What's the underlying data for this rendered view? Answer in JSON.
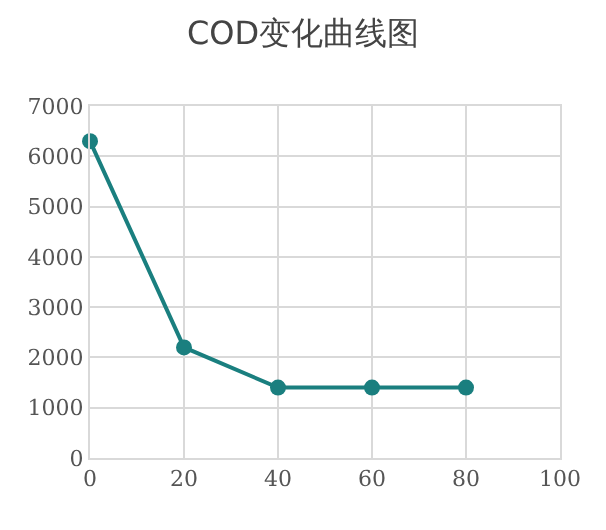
{
  "chart_data": {
    "type": "line",
    "title": "COD变化曲线图",
    "x": [
      0,
      20,
      40,
      60,
      80
    ],
    "series": [
      {
        "color": "#1a7f7f",
        "values": [
          6300,
          2200,
          1400,
          1400,
          1400
        ]
      }
    ],
    "xlim": [
      0,
      100
    ],
    "xticks": [
      0,
      20,
      40,
      60,
      80,
      100
    ],
    "ylim": [
      0,
      7000
    ],
    "yticks": [
      0,
      1000,
      2000,
      3000,
      4000,
      5000,
      6000,
      7000
    ],
    "grid": true,
    "marker": "circle",
    "line_style": "solid"
  }
}
